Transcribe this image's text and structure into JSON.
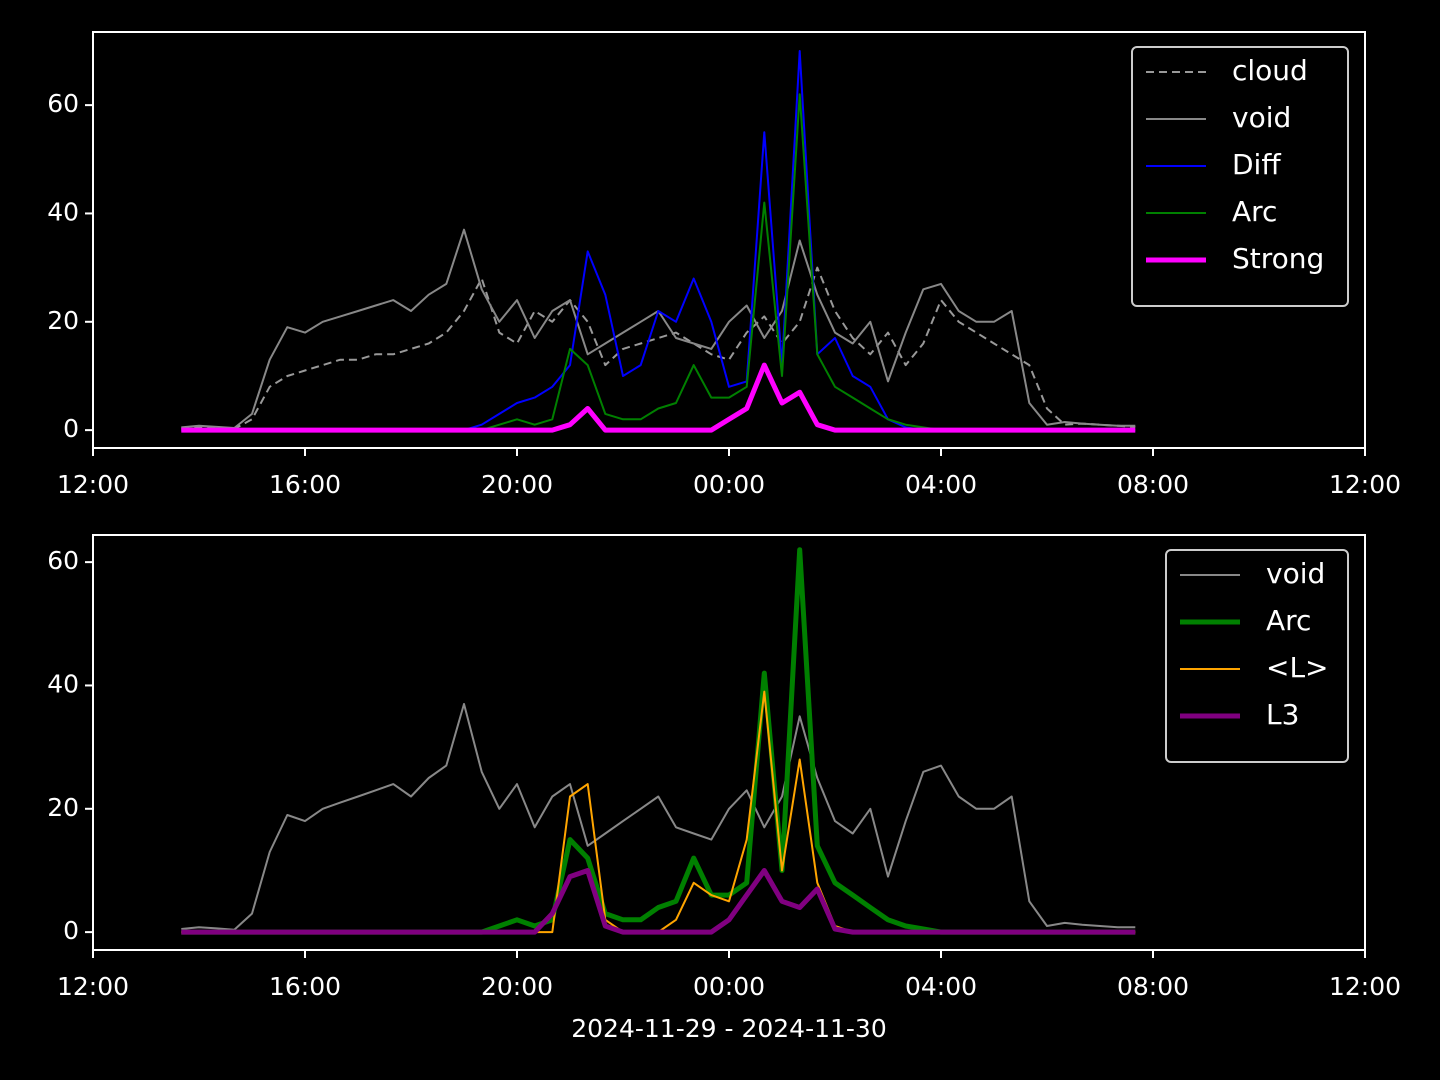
{
  "chart_data": [
    {
      "type": "line",
      "x": [
        "13:40",
        "14:00",
        "14:20",
        "14:40",
        "15:00",
        "15:20",
        "15:40",
        "16:00",
        "16:20",
        "16:40",
        "17:00",
        "17:20",
        "17:40",
        "18:00",
        "18:20",
        "18:40",
        "19:00",
        "19:20",
        "19:40",
        "20:00",
        "20:20",
        "20:40",
        "21:00",
        "21:20",
        "21:40",
        "22:00",
        "22:20",
        "22:40",
        "23:00",
        "23:20",
        "23:40",
        "00:00",
        "00:20",
        "00:40",
        "01:00",
        "01:20",
        "01:40",
        "02:00",
        "02:20",
        "02:40",
        "03:00",
        "03:20",
        "03:40",
        "04:00",
        "04:20",
        "04:40",
        "05:00",
        "05:20",
        "05:40",
        "06:00",
        "06:20",
        "06:40",
        "07:00",
        "07:20",
        "07:40"
      ],
      "xlim": [
        "12:00",
        "12:00"
      ],
      "xticks": [
        "12:00",
        "16:00",
        "20:00",
        "00:00",
        "04:00",
        "08:00",
        "12:00"
      ],
      "ylim": [
        -3.3,
        73.5
      ],
      "yticks": [
        0,
        20,
        40,
        60
      ],
      "legend": "upper right",
      "series": [
        {
          "name": "cloud",
          "color": "#999999",
          "dashed": true,
          "width": 2,
          "values": [
            0.3,
            0.5,
            0.4,
            0.2,
            2,
            8,
            10,
            11,
            12,
            13,
            13,
            14,
            14,
            15,
            16,
            18,
            22,
            28,
            18,
            16,
            22,
            20,
            24,
            20,
            12,
            15,
            16,
            17,
            18,
            16,
            14,
            13,
            18,
            21,
            16,
            20,
            30,
            22,
            17,
            14,
            18,
            12,
            16,
            24,
            20,
            18,
            16,
            14,
            12,
            4,
            1,
            1.2,
            1,
            0.8,
            0.6
          ]
        },
        {
          "name": "void",
          "color": "#888888",
          "width": 2,
          "values": [
            0.5,
            0.8,
            0.6,
            0.4,
            3,
            13,
            19,
            18,
            20,
            21,
            22,
            23,
            24,
            22,
            25,
            27,
            37,
            26,
            20,
            24,
            17,
            22,
            24,
            14,
            16,
            18,
            20,
            22,
            17,
            16,
            15,
            20,
            23,
            17,
            22,
            35,
            25,
            18,
            16,
            20,
            9,
            18,
            26,
            27,
            22,
            20,
            20,
            22,
            5,
            1,
            1.5,
            1.2,
            1,
            0.8,
            0.8
          ]
        },
        {
          "name": "Diff",
          "color": "#0000ff",
          "width": 2,
          "values": [
            0,
            0,
            0,
            0,
            0,
            0,
            0,
            0,
            0,
            0,
            0,
            0,
            0,
            0,
            0,
            0,
            0,
            1,
            3,
            5,
            6,
            8,
            12,
            33,
            25,
            10,
            12,
            22,
            20,
            28,
            20,
            8,
            9,
            55,
            12,
            70,
            14,
            17,
            10,
            8,
            2,
            0.5,
            0,
            0,
            0,
            0,
            0,
            0,
            0,
            0,
            0,
            0,
            0,
            0,
            0
          ]
        },
        {
          "name": "Arc",
          "color": "#008000",
          "width": 2,
          "values": [
            0,
            0,
            0,
            0,
            0,
            0,
            0,
            0,
            0,
            0,
            0,
            0,
            0,
            0,
            0,
            0,
            0,
            0,
            1,
            2,
            1,
            2,
            15,
            12,
            3,
            2,
            2,
            4,
            5,
            12,
            6,
            6,
            8,
            42,
            10,
            62,
            14,
            8,
            6,
            4,
            2,
            1,
            0.5,
            0,
            0,
            0,
            0,
            0,
            0,
            0,
            0,
            0,
            0,
            0,
            0
          ]
        },
        {
          "name": "Strong",
          "color": "#ff00ff",
          "width": 5,
          "values": [
            0,
            0,
            0,
            0,
            0,
            0,
            0,
            0,
            0,
            0,
            0,
            0,
            0,
            0,
            0,
            0,
            0,
            0,
            0,
            0,
            0,
            0,
            1,
            4,
            0,
            0,
            0,
            0,
            0,
            0,
            0,
            2,
            4,
            12,
            5,
            7,
            1,
            0,
            0,
            0,
            0,
            0,
            0,
            0,
            0,
            0,
            0,
            0,
            0,
            0,
            0,
            0,
            0,
            0,
            0
          ]
        }
      ]
    },
    {
      "type": "line",
      "x": [
        "13:40",
        "14:00",
        "14:20",
        "14:40",
        "15:00",
        "15:20",
        "15:40",
        "16:00",
        "16:20",
        "16:40",
        "17:00",
        "17:20",
        "17:40",
        "18:00",
        "18:20",
        "18:40",
        "19:00",
        "19:20",
        "19:40",
        "20:00",
        "20:20",
        "20:40",
        "21:00",
        "21:20",
        "21:40",
        "22:00",
        "22:20",
        "22:40",
        "23:00",
        "23:20",
        "23:40",
        "00:00",
        "00:20",
        "00:40",
        "01:00",
        "01:20",
        "01:40",
        "02:00",
        "02:20",
        "02:40",
        "03:00",
        "03:20",
        "03:40",
        "04:00",
        "04:20",
        "04:40",
        "05:00",
        "05:20",
        "05:40",
        "06:00",
        "06:20",
        "06:40",
        "07:00",
        "07:20",
        "07:40"
      ],
      "xlim": [
        "12:00",
        "12:00"
      ],
      "xticks": [
        "12:00",
        "16:00",
        "20:00",
        "00:00",
        "04:00",
        "08:00",
        "12:00"
      ],
      "xlabel": "2024-11-29 - 2024-11-30",
      "ylim": [
        -2.9,
        64.4
      ],
      "yticks": [
        0,
        20,
        40,
        60
      ],
      "legend": "upper right",
      "series": [
        {
          "name": "void",
          "color": "#888888",
          "width": 2,
          "values": [
            0.5,
            0.8,
            0.6,
            0.4,
            3,
            13,
            19,
            18,
            20,
            21,
            22,
            23,
            24,
            22,
            25,
            27,
            37,
            26,
            20,
            24,
            17,
            22,
            24,
            14,
            16,
            18,
            20,
            22,
            17,
            16,
            15,
            20,
            23,
            17,
            22,
            35,
            25,
            18,
            16,
            20,
            9,
            18,
            26,
            27,
            22,
            20,
            20,
            22,
            5,
            1,
            1.5,
            1.2,
            1,
            0.8,
            0.8
          ]
        },
        {
          "name": "Arc",
          "color": "#008000",
          "width": 5,
          "values": [
            0,
            0,
            0,
            0,
            0,
            0,
            0,
            0,
            0,
            0,
            0,
            0,
            0,
            0,
            0,
            0,
            0,
            0,
            1,
            2,
            1,
            2,
            15,
            12,
            3,
            2,
            2,
            4,
            5,
            12,
            6,
            6,
            8,
            42,
            10,
            62,
            14,
            8,
            6,
            4,
            2,
            1,
            0.5,
            0,
            0,
            0,
            0,
            0,
            0,
            0,
            0,
            0,
            0,
            0,
            0
          ]
        },
        {
          "name": "<L>",
          "color": "#ffa500",
          "width": 2,
          "values": [
            0,
            0,
            0,
            0,
            0,
            0,
            0,
            0,
            0,
            0,
            0,
            0,
            0,
            0,
            0,
            0,
            0,
            0,
            0,
            0,
            0,
            0,
            22,
            24,
            2,
            0,
            0,
            0,
            2,
            8,
            6,
            5,
            15,
            39,
            10,
            28,
            8,
            1,
            0,
            0,
            0,
            0,
            0,
            0,
            0,
            0,
            0,
            0,
            0,
            0,
            0,
            0,
            0,
            0,
            0
          ]
        },
        {
          "name": "L3",
          "color": "#800080",
          "width": 5,
          "values": [
            0,
            0,
            0,
            0,
            0,
            0,
            0,
            0,
            0,
            0,
            0,
            0,
            0,
            0,
            0,
            0,
            0,
            0,
            0,
            0,
            0,
            3,
            9,
            10,
            1,
            0,
            0,
            0,
            0,
            0,
            0,
            2,
            6,
            10,
            5,
            4,
            7,
            0.5,
            0,
            0,
            0,
            0,
            0,
            0,
            0,
            0,
            0,
            0,
            0,
            0,
            0,
            0,
            0,
            0,
            0
          ]
        }
      ]
    }
  ]
}
